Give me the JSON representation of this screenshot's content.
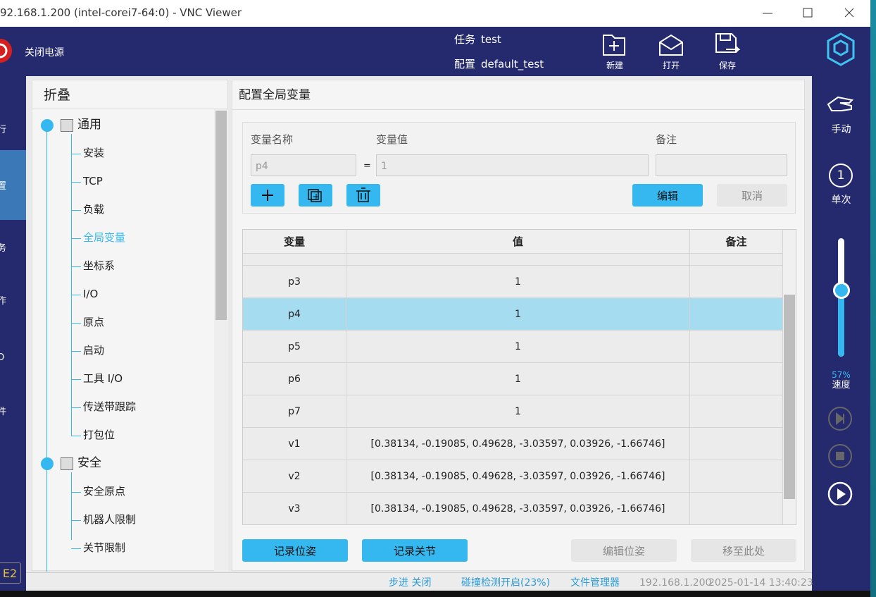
{
  "window": {
    "title": "92.168.1.200 (intel-corei7-64:0) - VNC Viewer"
  },
  "header": {
    "power": "关闭电源",
    "task_label": "任务",
    "task": "test",
    "config_label": "配置",
    "config": "default_test",
    "buttons": [
      "新建",
      "打开",
      "保存"
    ]
  },
  "left_nav": {
    "items": [
      "行",
      "置",
      "务",
      "作",
      "O",
      "件"
    ],
    "badge": "E2"
  },
  "tree": {
    "header": "折叠",
    "groups": [
      {
        "label": "通用",
        "items": [
          "安装",
          "TCP",
          "负载",
          "全局变量",
          "坐标系",
          "I/O",
          "原点",
          "启动",
          "工具 I/O",
          "传送带跟踪",
          "打包位"
        ]
      },
      {
        "label": "安全",
        "items": [
          "安全原点",
          "机器人限制",
          "关节限制"
        ]
      }
    ]
  },
  "panel": {
    "title": "配置全局变量",
    "form": {
      "name_label": "变量名称",
      "value_label": "变量值",
      "note_label": "备注",
      "name": "p4",
      "equals": "=",
      "value": "1",
      "edit": "编辑",
      "cancel": "取消"
    },
    "table": {
      "columns": [
        "变量",
        "值",
        "备注"
      ],
      "rows": [
        {
          "name": "p3",
          "value": "1"
        },
        {
          "name": "p4",
          "value": "1"
        },
        {
          "name": "p5",
          "value": "1"
        },
        {
          "name": "p6",
          "value": "1"
        },
        {
          "name": "p7",
          "value": "1"
        },
        {
          "name": "v1",
          "value": "[0.38134, -0.19085, 0.49628, -3.03597, 0.03926, -1.66746]"
        },
        {
          "name": "v2",
          "value": "[0.38134, -0.19085, 0.49628, -3.03597, 0.03926, -1.66746]"
        },
        {
          "name": "v3",
          "value": "[0.38134, -0.19085, 0.49628, -3.03597, 0.03926, -1.66746]"
        }
      ]
    },
    "buttons": [
      "记录位姿",
      "记录关节",
      "编辑位姿",
      "移至此处"
    ]
  },
  "right_nav": {
    "mode": "手动",
    "cycle_icon": "1",
    "cycle": "单次",
    "speed": "57%",
    "speed_label": "速度"
  },
  "status": {
    "step": "步进 关闭",
    "collision": "碰撞检测开启(23%)",
    "files": "文件管理器",
    "ip": "192.168.1.200",
    "time": "2025-01-14 13:40:23"
  }
}
